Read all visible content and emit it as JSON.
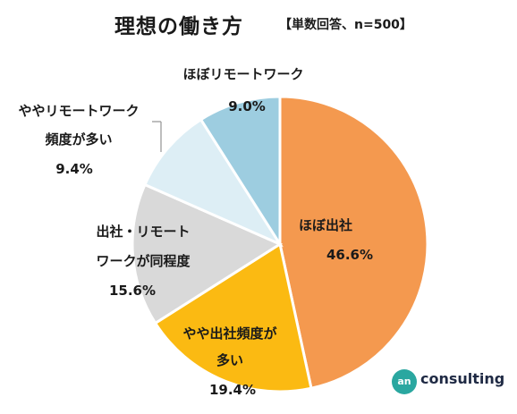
{
  "title": "理想の働き方",
  "subtitle": "【単数回答、n=500】",
  "logo": {
    "text": "consulting",
    "mark": "an"
  },
  "chart_data": {
    "type": "pie",
    "title": "理想の働き方",
    "subtitle": "【単数回答、n=500】",
    "slices": [
      {
        "label": "ほぼ出社",
        "value": 46.6,
        "value_label": "46.6%",
        "color": "#F4994F"
      },
      {
        "label": "やや出社頻度が多い",
        "value": 19.4,
        "value_label": "19.4%",
        "color": "#FBBA12"
      },
      {
        "label": "出社・リモートワークが同程度",
        "value": 15.6,
        "value_label": "15.6%",
        "color": "#D9D9D9"
      },
      {
        "label": "ややリモートワーク頻度が多い",
        "value": 9.4,
        "value_label": "9.4%",
        "color": "#DDEEF5"
      },
      {
        "label": "ほぼリモートワーク",
        "value": 9.0,
        "value_label": "9.0%",
        "color": "#9DCDE0"
      }
    ],
    "start": "12 o'clock",
    "direction": "clockwise",
    "legend": "none"
  }
}
